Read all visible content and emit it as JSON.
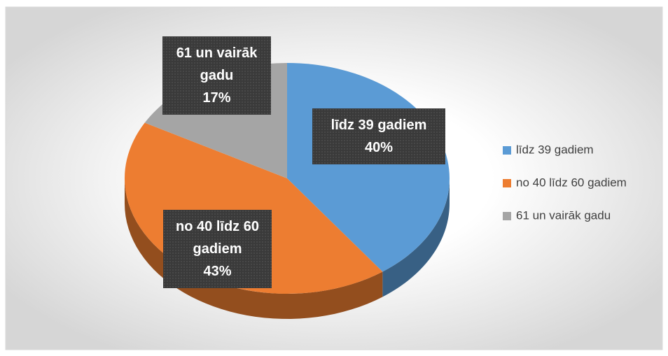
{
  "chart_data": {
    "type": "pie",
    "categories": [
      "līdz 39 gadiem",
      "no 40 līdz 60 gadiem",
      "61 un vairāk gadu"
    ],
    "values": [
      40,
      43,
      17
    ],
    "value_labels": [
      "40%",
      "43%",
      "17%"
    ],
    "colors": [
      "#5b9bd5",
      "#ed7d31",
      "#a5a5a5"
    ],
    "legend": "right"
  }
}
